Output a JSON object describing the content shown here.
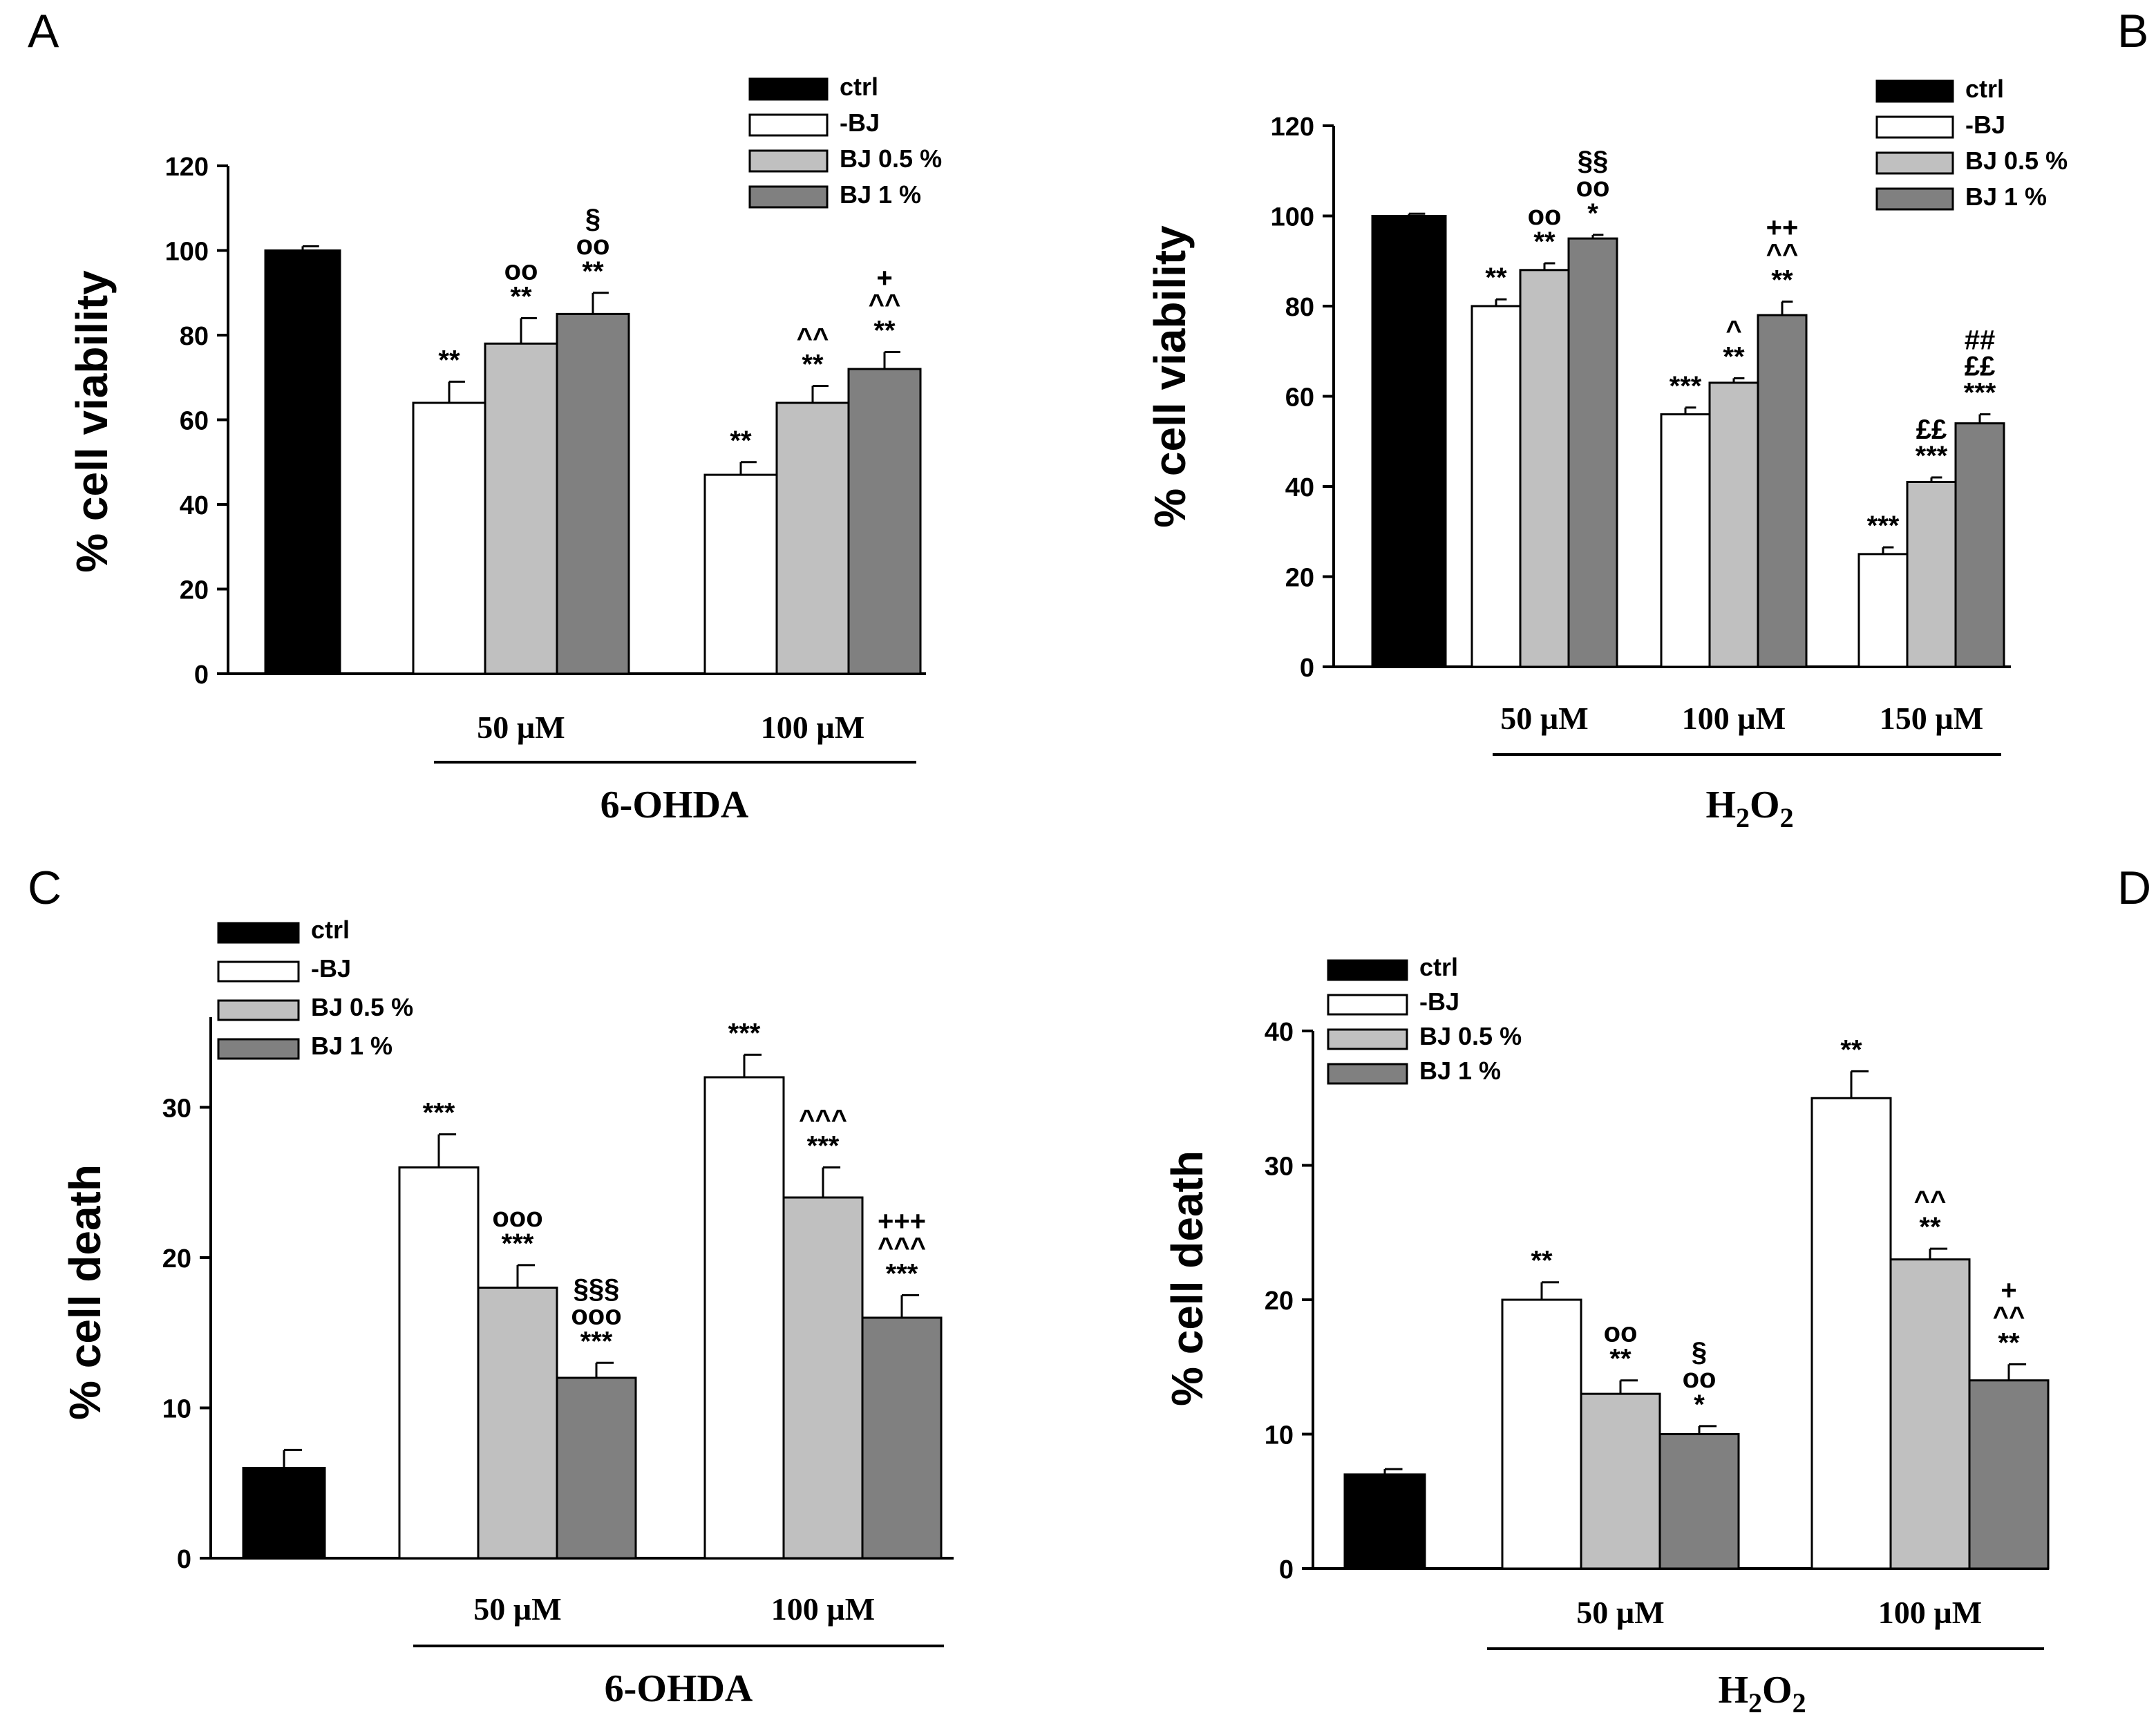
{
  "series_names": [
    "ctrl",
    "-BJ",
    "BJ 0.5 %",
    "BJ 1 %"
  ],
  "series_colors": [
    "#000000",
    "#ffffff",
    "#c0c0c0",
    "#808080"
  ],
  "chart_data": [
    {
      "panel": "A",
      "type": "bar",
      "ylabel": "% cell viability",
      "ylim": [
        0,
        120
      ],
      "yticks": [
        0,
        20,
        40,
        60,
        80,
        100,
        120
      ],
      "treatment": {
        "base": "6-OHDA",
        "sub": "",
        "tail": ""
      },
      "ctrl": {
        "value": 100,
        "error": 1
      },
      "groups": [
        {
          "label": "50 µM",
          "bars": [
            {
              "series": "-BJ",
              "value": 64,
              "error": 5,
              "annotation": [
                "**"
              ]
            },
            {
              "series": "BJ 0.5 %",
              "value": 78,
              "error": 6,
              "annotation": [
                "oo",
                "**"
              ]
            },
            {
              "series": "BJ 1 %",
              "value": 85,
              "error": 5,
              "annotation": [
                "§",
                "oo",
                "**"
              ]
            }
          ]
        },
        {
          "label": "100 µM",
          "bars": [
            {
              "series": "-BJ",
              "value": 47,
              "error": 3,
              "annotation": [
                "**"
              ]
            },
            {
              "series": "BJ 0.5 %",
              "value": 64,
              "error": 4,
              "annotation": [
                "^^",
                "**"
              ]
            },
            {
              "series": "BJ 1 %",
              "value": 72,
              "error": 4,
              "annotation": [
                "+",
                "^^",
                "**"
              ]
            }
          ]
        }
      ]
    },
    {
      "panel": "B",
      "type": "bar",
      "ylabel": "% cell viability",
      "ylim": [
        0,
        120
      ],
      "yticks": [
        0,
        20,
        40,
        60,
        80,
        100,
        120
      ],
      "treatment": {
        "base": "H",
        "sub": "2",
        "tail": "O"
      },
      "ctrl": {
        "value": 100,
        "error": 0.5
      },
      "groups": [
        {
          "label": "50 µM",
          "bars": [
            {
              "series": "-BJ",
              "value": 80,
              "error": 1.5,
              "annotation": [
                "**"
              ]
            },
            {
              "series": "BJ 0.5 %",
              "value": 88,
              "error": 1.5,
              "annotation": [
                "oo",
                "**"
              ]
            },
            {
              "series": "BJ 1 %",
              "value": 95,
              "error": 0.8,
              "annotation": [
                "§§",
                "oo",
                "*"
              ]
            }
          ]
        },
        {
          "label": "100 µM",
          "bars": [
            {
              "series": "-BJ",
              "value": 56,
              "error": 1.5,
              "annotation": [
                "***"
              ]
            },
            {
              "series": "BJ 0.5 %",
              "value": 63,
              "error": 1,
              "annotation": [
                "^",
                "**"
              ]
            },
            {
              "series": "BJ 1 %",
              "value": 78,
              "error": 3,
              "annotation": [
                "++",
                "^^",
                "**"
              ]
            }
          ]
        },
        {
          "label": "150 µM",
          "bars": [
            {
              "series": "-BJ",
              "value": 25,
              "error": 1.5,
              "annotation": [
                "***"
              ]
            },
            {
              "series": "BJ 0.5 %",
              "value": 41,
              "error": 1,
              "annotation": [
                "££",
                "***"
              ]
            },
            {
              "series": "BJ 1 %",
              "value": 54,
              "error": 2,
              "annotation": [
                "##",
                "££",
                "***"
              ]
            }
          ]
        }
      ]
    },
    {
      "panel": "C",
      "type": "bar",
      "ylabel": "% cell death",
      "ylim": [
        0,
        36
      ],
      "yticks": [
        0,
        10,
        20,
        30
      ],
      "treatment": {
        "base": "6-OHDA",
        "sub": "",
        "tail": ""
      },
      "ctrl": {
        "value": 6,
        "error": 1.2
      },
      "groups": [
        {
          "label": "50 µM",
          "bars": [
            {
              "series": "-BJ",
              "value": 26,
              "error": 2.2,
              "annotation": [
                "***"
              ]
            },
            {
              "series": "BJ 0.5 %",
              "value": 18,
              "error": 1.5,
              "annotation": [
                "ooo",
                "***"
              ]
            },
            {
              "series": "BJ 1 %",
              "value": 12,
              "error": 1,
              "annotation": [
                "§§§",
                "ooo",
                "***"
              ]
            }
          ]
        },
        {
          "label": "100 µM",
          "bars": [
            {
              "series": "-BJ",
              "value": 32,
              "error": 1.5,
              "annotation": [
                "***"
              ]
            },
            {
              "series": "BJ 0.5 %",
              "value": 24,
              "error": 2,
              "annotation": [
                "^^^",
                "***"
              ]
            },
            {
              "series": "BJ 1 %",
              "value": 16,
              "error": 1.5,
              "annotation": [
                "+++",
                "^^^",
                "***"
              ]
            }
          ]
        }
      ]
    },
    {
      "panel": "D",
      "type": "bar",
      "ylabel": "% cell death",
      "ylim": [
        0,
        40
      ],
      "yticks": [
        0,
        10,
        20,
        30,
        40
      ],
      "treatment": {
        "base": "H",
        "sub": "2",
        "tail": "O"
      },
      "ctrl": {
        "value": 7,
        "error": 0.4
      },
      "groups": [
        {
          "label": "50 µM",
          "bars": [
            {
              "series": "-BJ",
              "value": 20,
              "error": 1.3,
              "annotation": [
                "**"
              ]
            },
            {
              "series": "BJ 0.5 %",
              "value": 13,
              "error": 1,
              "annotation": [
                "oo",
                "**"
              ]
            },
            {
              "series": "BJ 1 %",
              "value": 10,
              "error": 0.6,
              "annotation": [
                "§",
                "oo",
                "*"
              ]
            }
          ]
        },
        {
          "label": "100 µM",
          "bars": [
            {
              "series": "-BJ",
              "value": 35,
              "error": 2,
              "annotation": [
                "**"
              ]
            },
            {
              "series": "BJ 0.5 %",
              "value": 23,
              "error": 0.8,
              "annotation": [
                "^^",
                "**"
              ]
            },
            {
              "series": "BJ 1 %",
              "value": 14,
              "error": 1.2,
              "annotation": [
                "+",
                "^^",
                "**"
              ]
            }
          ]
        }
      ]
    }
  ]
}
